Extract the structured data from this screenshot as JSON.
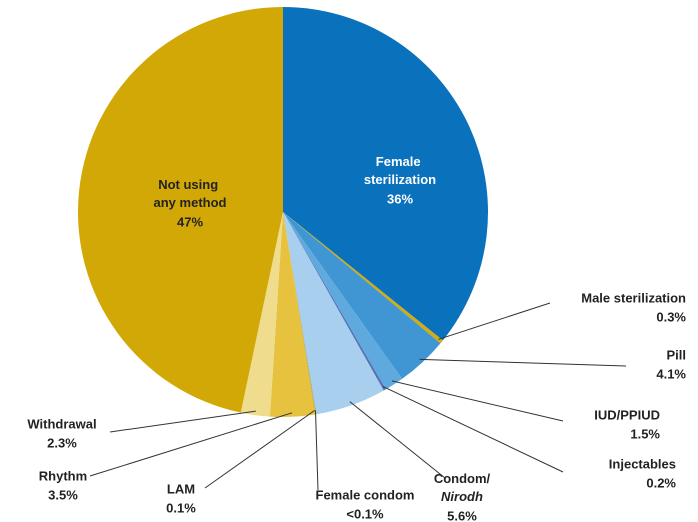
{
  "chart_data": {
    "type": "pie",
    "categories": [
      "Female sterilization",
      "Male sterilization",
      "Pill",
      "IUD/PPIUD",
      "Injectables",
      "Condom/Nirodh",
      "Female condom",
      "LAM",
      "Rhythm",
      "Withdrawal",
      "Not using any method"
    ],
    "values": [
      36,
      0.3,
      4.1,
      1.5,
      0.2,
      5.6,
      0.05,
      0.1,
      3.5,
      2.3,
      47
    ],
    "value_labels": [
      "36%",
      "0.3%",
      "4.1%",
      "1.5%",
      "0.2%",
      "5.6%",
      "<0.1%",
      "0.1%",
      "3.5%",
      "2.3%",
      "47%"
    ],
    "colors": [
      "#0a72bd",
      "#d4ac0d",
      "#3f96d2",
      "#5eaadf",
      "#5673b8",
      "#a8d0ee",
      "#7aa6c8",
      "#d9b624",
      "#e6c23e",
      "#efdc8c",
      "#d2a806"
    ]
  }
}
